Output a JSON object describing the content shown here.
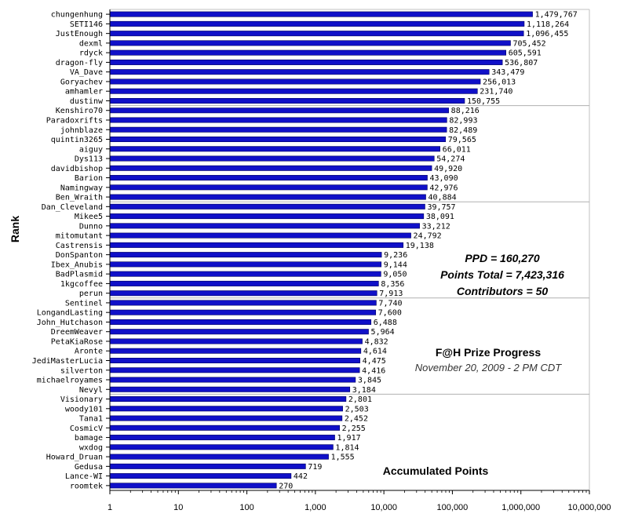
{
  "chart_data": {
    "type": "bar",
    "orientation": "horizontal",
    "x_scale": "log",
    "xlim": [
      1,
      10000000
    ],
    "ylabel": "Rank",
    "xlabel": "Accumulated Points",
    "grid": "every 10th row",
    "bar_color": "#1010c8",
    "x_ticks": [
      "1",
      "10",
      "100",
      "1,000",
      "10,000",
      "100,000",
      "1,000,000",
      "10,000,000"
    ],
    "categories": [
      "chungenhung",
      "SETI146",
      "JustEnough",
      "dexml",
      "rdyck",
      "dragon-fly",
      "VA_Dave",
      "Goryachev",
      "amhamler",
      "dustinw",
      "Kenshiro70",
      "Paradoxrifts",
      "johnblaze",
      "quintin3265",
      "aiguy",
      "Dys113",
      "davidbishop",
      "Barion",
      "Namingway",
      "Ben_Wraith",
      "Dan_Cleveland",
      "Mikee5",
      "Dunno",
      "mitomutant",
      "Castrensis",
      "DonSpanton",
      "Ibex_Anubis",
      "BadPlasmid",
      "1kgcoffee",
      "perun",
      "Sentinel",
      "LongandLasting",
      "John_Hutchason",
      "DreemWeaver",
      "PetaKiaRose",
      "Aronte",
      "JediMasterLucia",
      "silverton",
      "michaelroyames",
      "Nevyl",
      "Visionary",
      "woody101",
      "Tana1",
      "CosmicV",
      "bamage",
      "wxdog",
      "Howard_Druan",
      "Gedusa",
      "Lance-WI",
      "roomtek"
    ],
    "values": [
      1479767,
      1118264,
      1096455,
      705452,
      605591,
      536807,
      343479,
      256013,
      231740,
      150755,
      88216,
      82993,
      82489,
      79565,
      66011,
      54274,
      49920,
      43090,
      42976,
      40884,
      39757,
      38091,
      33212,
      24792,
      19138,
      9236,
      9144,
      9050,
      8356,
      7913,
      7740,
      7600,
      6488,
      5964,
      4832,
      4614,
      4475,
      4416,
      3845,
      3184,
      2801,
      2503,
      2452,
      2255,
      1917,
      1814,
      1555,
      719,
      442,
      270
    ],
    "value_labels": [
      "1,479,767",
      "1,118,264",
      "1,096,455",
      "705,452",
      "605,591",
      "536,807",
      "343,479",
      "256,013",
      "231,740",
      "150,755",
      "88,216",
      "82,993",
      "82,489",
      "79,565",
      "66,011",
      "54,274",
      "49,920",
      "43,090",
      "42,976",
      "40,884",
      "39,757",
      "38,091",
      "33,212",
      "24,792",
      "19,138",
      "9,236",
      "9,144",
      "9,050",
      "8,356",
      "7,913",
      "7,740",
      "7,600",
      "6,488",
      "5,964",
      "4,832",
      "4,614",
      "4,475",
      "4,416",
      "3,845",
      "3,184",
      "2,801",
      "2,503",
      "2,452",
      "2,255",
      "1,917",
      "1,814",
      "1,555",
      "719",
      "442",
      "270"
    ]
  },
  "annotation": {
    "ppd": "PPD = 160,270",
    "points_total": "Points Total = 7,423,316",
    "contributors": "Contributors = 50",
    "prize_title": "F@H Prize Progress",
    "prize_date": "November 20, 2009 - 2 PM CDT"
  }
}
